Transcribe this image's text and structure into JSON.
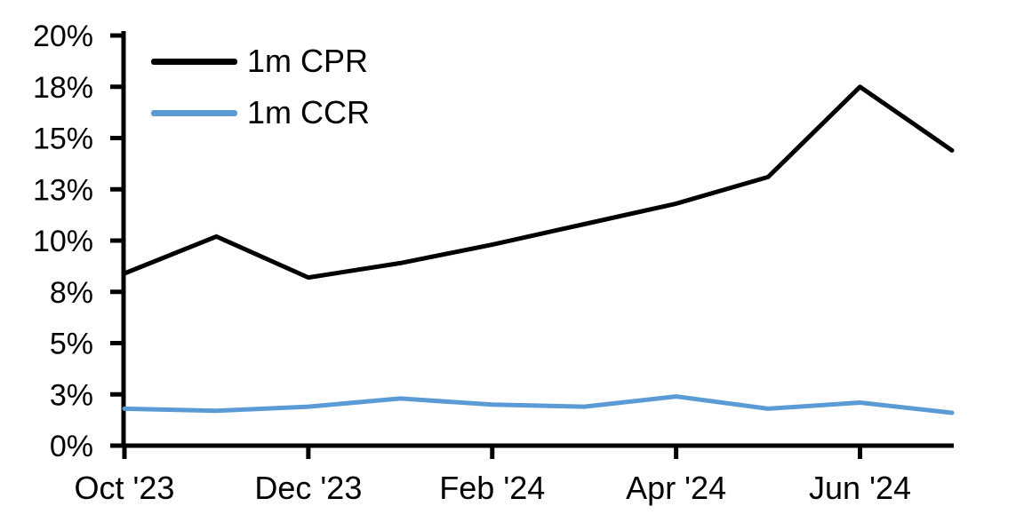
{
  "chart_data": {
    "type": "line",
    "title": "",
    "x": [
      "Oct '23",
      "Nov '23",
      "Dec '23",
      "Jan '24",
      "Feb '24",
      "Mar '24",
      "Apr '24",
      "May '24",
      "Jun '24",
      "Jul '24"
    ],
    "x_tick_labels": [
      "Oct '23",
      "Dec '23",
      "Feb '24",
      "Apr '24",
      "Jun '24"
    ],
    "series": [
      {
        "name": "1m CPR",
        "color": "#000000",
        "values": [
          8.4,
          10.2,
          8.2,
          8.9,
          9.8,
          10.8,
          11.8,
          13.1,
          17.5,
          14.4
        ]
      },
      {
        "name": "1m CCR",
        "color": "#5B9BD5",
        "values": [
          1.8,
          1.7,
          1.9,
          2.3,
          2.0,
          1.9,
          2.4,
          1.8,
          2.1,
          1.6
        ]
      }
    ],
    "y_axis": {
      "min": 0,
      "max": 20,
      "tick_interval": 2.5,
      "tick_values": [
        0,
        2.5,
        5,
        7.5,
        10,
        12.5,
        15,
        17.5,
        20
      ],
      "tick_labels": [
        "0%",
        "3%",
        "5%",
        "8%",
        "10%",
        "13%",
        "15%",
        "18%",
        "20%"
      ],
      "unit": "%"
    },
    "legend": {
      "position": "top-left",
      "entries": [
        "1m CPR",
        "1m CCR"
      ]
    },
    "grid": false,
    "background": "#ffffff",
    "axis_color": "#000000"
  }
}
